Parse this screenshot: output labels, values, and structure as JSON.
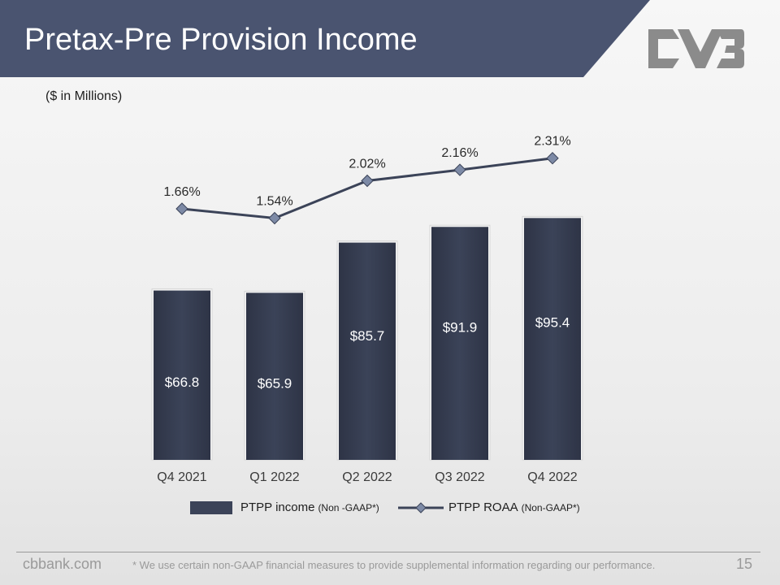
{
  "slide": {
    "title": "Pretax-Pre Provision Income",
    "units_note": "($ in Millions)",
    "brand_color": "#4a5470"
  },
  "chart_data": {
    "type": "bar",
    "categories": [
      "Q4 2021",
      "Q1 2022",
      "Q2 2022",
      "Q3 2022",
      "Q4 2022"
    ],
    "series": [
      {
        "name": "PTPP income",
        "type": "bar",
        "values": [
          66.8,
          65.9,
          85.7,
          91.9,
          95.4
        ],
        "labels": [
          "$66.8",
          "$65.9",
          "$85.7",
          "$91.9",
          "$95.4"
        ],
        "color": "#3b4358"
      },
      {
        "name": "PTPP ROAA",
        "type": "line",
        "values": [
          1.66,
          1.54,
          2.02,
          2.16,
          2.31
        ],
        "labels": [
          "1.66%",
          "1.54%",
          "2.02%",
          "2.16%",
          "2.31%"
        ],
        "color": "#3b4358",
        "marker": "diamond",
        "marker_color": "#7d8aa6"
      }
    ],
    "legend": {
      "position": "bottom",
      "items": [
        {
          "label": "PTPP income",
          "note": "(Non -GAAP*)"
        },
        {
          "label": "PTPP ROAA",
          "note": "(Non-GAAP*)"
        }
      ]
    },
    "gridlines": false
  },
  "footer": {
    "site": "cbbank.com",
    "note": "* We use certain non-GAAP financial measures to provide supplemental information regarding our performance.",
    "page_number": "15"
  }
}
